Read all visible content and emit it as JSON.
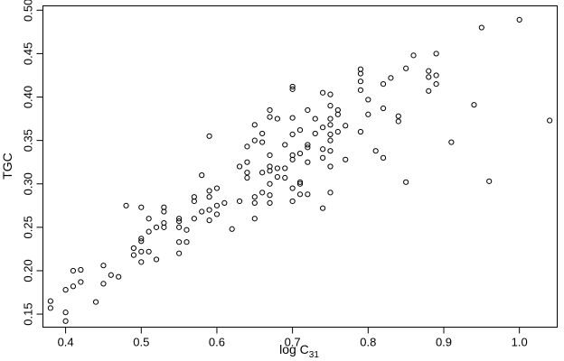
{
  "chart_data": {
    "type": "scatter",
    "xlabel": {
      "main": "log C",
      "sub": "31"
    },
    "ylabel": "TGC",
    "xticks": [
      "0.4",
      "0.5",
      "0.6",
      "0.7",
      "0.8",
      "0.9",
      "1.0"
    ],
    "yticks": [
      "0.15",
      "0.20",
      "0.25",
      "0.30",
      "0.35",
      "0.40",
      "0.45",
      "0.50"
    ],
    "xlim": [
      0.37,
      1.05
    ],
    "ylim": [
      0.135,
      0.505
    ],
    "marker": "open-circle",
    "points": [
      [
        0.38,
        0.165
      ],
      [
        0.38,
        0.157
      ],
      [
        0.4,
        0.152
      ],
      [
        0.4,
        0.142
      ],
      [
        0.4,
        0.178
      ],
      [
        0.41,
        0.2
      ],
      [
        0.41,
        0.182
      ],
      [
        0.42,
        0.201
      ],
      [
        0.42,
        0.187
      ],
      [
        0.44,
        0.164
      ],
      [
        0.45,
        0.206
      ],
      [
        0.45,
        0.185
      ],
      [
        0.46,
        0.195
      ],
      [
        0.47,
        0.193
      ],
      [
        0.48,
        0.275
      ],
      [
        0.49,
        0.226
      ],
      [
        0.49,
        0.218
      ],
      [
        0.5,
        0.237
      ],
      [
        0.5,
        0.234
      ],
      [
        0.5,
        0.222
      ],
      [
        0.5,
        0.21
      ],
      [
        0.5,
        0.273
      ],
      [
        0.51,
        0.26
      ],
      [
        0.51,
        0.245
      ],
      [
        0.51,
        0.222
      ],
      [
        0.52,
        0.25
      ],
      [
        0.52,
        0.213
      ],
      [
        0.53,
        0.273
      ],
      [
        0.53,
        0.268
      ],
      [
        0.53,
        0.255
      ],
      [
        0.53,
        0.25
      ],
      [
        0.55,
        0.26
      ],
      [
        0.55,
        0.257
      ],
      [
        0.55,
        0.25
      ],
      [
        0.55,
        0.233
      ],
      [
        0.55,
        0.22
      ],
      [
        0.56,
        0.247
      ],
      [
        0.56,
        0.233
      ],
      [
        0.57,
        0.285
      ],
      [
        0.57,
        0.28
      ],
      [
        0.57,
        0.26
      ],
      [
        0.58,
        0.31
      ],
      [
        0.58,
        0.268
      ],
      [
        0.59,
        0.355
      ],
      [
        0.59,
        0.292
      ],
      [
        0.59,
        0.285
      ],
      [
        0.59,
        0.27
      ],
      [
        0.59,
        0.258
      ],
      [
        0.6,
        0.295
      ],
      [
        0.6,
        0.275
      ],
      [
        0.6,
        0.265
      ],
      [
        0.61,
        0.278
      ],
      [
        0.62,
        0.248
      ],
      [
        0.63,
        0.32
      ],
      [
        0.63,
        0.28
      ],
      [
        0.64,
        0.343
      ],
      [
        0.64,
        0.325
      ],
      [
        0.64,
        0.313
      ],
      [
        0.64,
        0.307
      ],
      [
        0.65,
        0.368
      ],
      [
        0.65,
        0.35
      ],
      [
        0.65,
        0.285
      ],
      [
        0.65,
        0.278
      ],
      [
        0.65,
        0.26
      ],
      [
        0.66,
        0.358
      ],
      [
        0.66,
        0.348
      ],
      [
        0.66,
        0.313
      ],
      [
        0.66,
        0.29
      ],
      [
        0.67,
        0.385
      ],
      [
        0.67,
        0.377
      ],
      [
        0.67,
        0.333
      ],
      [
        0.67,
        0.32
      ],
      [
        0.67,
        0.315
      ],
      [
        0.67,
        0.3
      ],
      [
        0.67,
        0.287
      ],
      [
        0.67,
        0.278
      ],
      [
        0.68,
        0.375
      ],
      [
        0.68,
        0.318
      ],
      [
        0.68,
        0.308
      ],
      [
        0.69,
        0.345
      ],
      [
        0.69,
        0.318
      ],
      [
        0.69,
        0.307
      ],
      [
        0.7,
        0.412
      ],
      [
        0.7,
        0.409
      ],
      [
        0.7,
        0.376
      ],
      [
        0.7,
        0.357
      ],
      [
        0.7,
        0.333
      ],
      [
        0.7,
        0.328
      ],
      [
        0.7,
        0.295
      ],
      [
        0.7,
        0.28
      ],
      [
        0.71,
        0.362
      ],
      [
        0.71,
        0.335
      ],
      [
        0.71,
        0.302
      ],
      [
        0.71,
        0.3
      ],
      [
        0.71,
        0.288
      ],
      [
        0.72,
        0.385
      ],
      [
        0.72,
        0.345
      ],
      [
        0.72,
        0.342
      ],
      [
        0.72,
        0.325
      ],
      [
        0.72,
        0.288
      ],
      [
        0.73,
        0.375
      ],
      [
        0.73,
        0.358
      ],
      [
        0.74,
        0.405
      ],
      [
        0.74,
        0.365
      ],
      [
        0.74,
        0.34
      ],
      [
        0.74,
        0.33
      ],
      [
        0.74,
        0.272
      ],
      [
        0.75,
        0.403
      ],
      [
        0.75,
        0.39
      ],
      [
        0.75,
        0.375
      ],
      [
        0.75,
        0.368
      ],
      [
        0.75,
        0.357
      ],
      [
        0.75,
        0.35
      ],
      [
        0.75,
        0.338
      ],
      [
        0.75,
        0.32
      ],
      [
        0.75,
        0.29
      ],
      [
        0.76,
        0.385
      ],
      [
        0.76,
        0.38
      ],
      [
        0.76,
        0.36
      ],
      [
        0.77,
        0.367
      ],
      [
        0.77,
        0.328
      ],
      [
        0.79,
        0.432
      ],
      [
        0.79,
        0.427
      ],
      [
        0.79,
        0.418
      ],
      [
        0.79,
        0.408
      ],
      [
        0.79,
        0.36
      ],
      [
        0.8,
        0.397
      ],
      [
        0.8,
        0.38
      ],
      [
        0.81,
        0.338
      ],
      [
        0.82,
        0.415
      ],
      [
        0.82,
        0.387
      ],
      [
        0.82,
        0.33
      ],
      [
        0.83,
        0.422
      ],
      [
        0.84,
        0.378
      ],
      [
        0.84,
        0.372
      ],
      [
        0.85,
        0.433
      ],
      [
        0.85,
        0.302
      ],
      [
        0.86,
        0.448
      ],
      [
        0.88,
        0.43
      ],
      [
        0.88,
        0.423
      ],
      [
        0.88,
        0.407
      ],
      [
        0.89,
        0.45
      ],
      [
        0.89,
        0.425
      ],
      [
        0.89,
        0.415
      ],
      [
        0.91,
        0.348
      ],
      [
        0.94,
        0.391
      ],
      [
        0.95,
        0.48
      ],
      [
        0.96,
        0.303
      ],
      [
        1.0,
        0.489
      ],
      [
        1.04,
        0.373
      ]
    ]
  }
}
